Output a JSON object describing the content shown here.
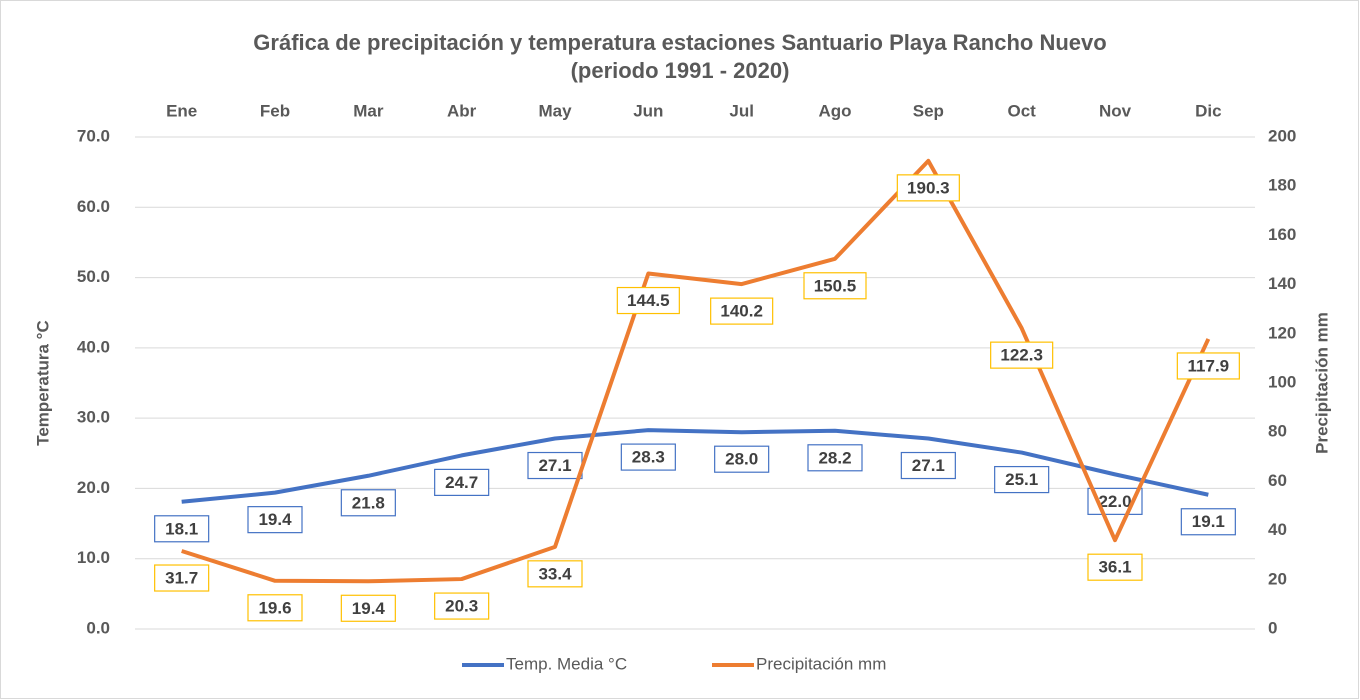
{
  "chart_data": {
    "type": "line",
    "title": "Gráfica de precipitación y temperatura estaciones Santuario Playa Rancho Nuevo",
    "subtitle": "(periodo 1991 - 2020)",
    "categories": [
      "Ene",
      "Feb",
      "Mar",
      "Abr",
      "May",
      "Jun",
      "Jul",
      "Ago",
      "Sep",
      "Oct",
      "Nov",
      "Dic"
    ],
    "y_label": "Temperatura °C",
    "y2_label": "Precipitación mm",
    "ylim": [
      0,
      70
    ],
    "yticks": [
      {
        "value": 0,
        "label": "0.0"
      },
      {
        "value": 10,
        "label": "10.0"
      },
      {
        "value": 20,
        "label": "20.0"
      },
      {
        "value": 30,
        "label": "30.0"
      },
      {
        "value": 40,
        "label": "40.0"
      },
      {
        "value": 50,
        "label": "50.0"
      },
      {
        "value": 60,
        "label": "60.0"
      },
      {
        "value": 70,
        "label": "70.0"
      }
    ],
    "y2lim": [
      0,
      200
    ],
    "y2ticks": [
      0,
      20,
      40,
      60,
      80,
      100,
      120,
      140,
      160,
      180,
      200
    ],
    "grid": true,
    "legend": "bottom",
    "series": [
      {
        "name": "Temp. Media °C",
        "color": "#4472c4",
        "label_border": "#4472c4",
        "axis": "y",
        "values": [
          18.1,
          19.4,
          21.8,
          24.7,
          27.1,
          28.3,
          28,
          28.2,
          27.1,
          25.1,
          22,
          19.1
        ],
        "value_labels": [
          "18.1",
          "19.4",
          "21.8",
          "24.7",
          "27.1",
          "28.3",
          "28.0",
          "28.2",
          "27.1",
          "25.1",
          "22.0",
          "19.1"
        ]
      },
      {
        "name": "Precipitación mm",
        "color": "#ed7d31",
        "label_border": "#ffc000",
        "axis": "y2",
        "values": [
          31.7,
          19.6,
          19.4,
          20.3,
          33.4,
          144.5,
          140.2,
          150.5,
          190.3,
          122.3,
          36.1,
          117.9
        ]
      }
    ]
  }
}
